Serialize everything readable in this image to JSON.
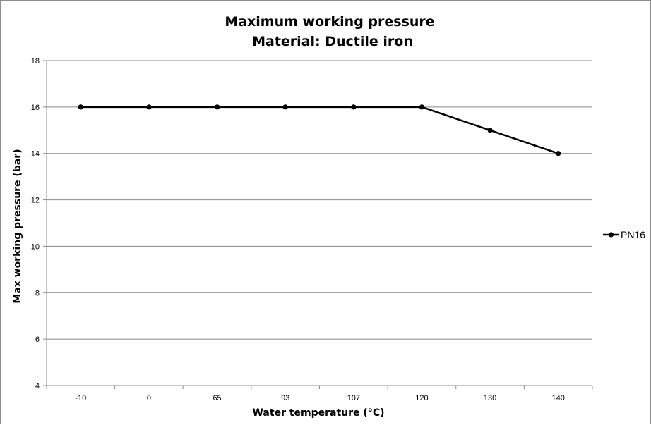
{
  "chart_data": {
    "type": "line",
    "title": "Maximum working pressure",
    "subtitle": "Material: Ductile iron",
    "xlabel": "Water temperature (°C)",
    "ylabel": "Max working pressure (bar)",
    "categories": [
      "-10",
      "0",
      "65",
      "93",
      "107",
      "120",
      "130",
      "140"
    ],
    "series": [
      {
        "name": "PN16",
        "values": [
          16,
          16,
          16,
          16,
          16,
          16,
          15,
          14
        ],
        "color": "#000000",
        "marker": "circle"
      }
    ],
    "ylim": [
      4,
      18
    ],
    "yticks": [
      4,
      6,
      8,
      10,
      12,
      14,
      16,
      18
    ],
    "grid": "horizontal",
    "legend": "right"
  }
}
